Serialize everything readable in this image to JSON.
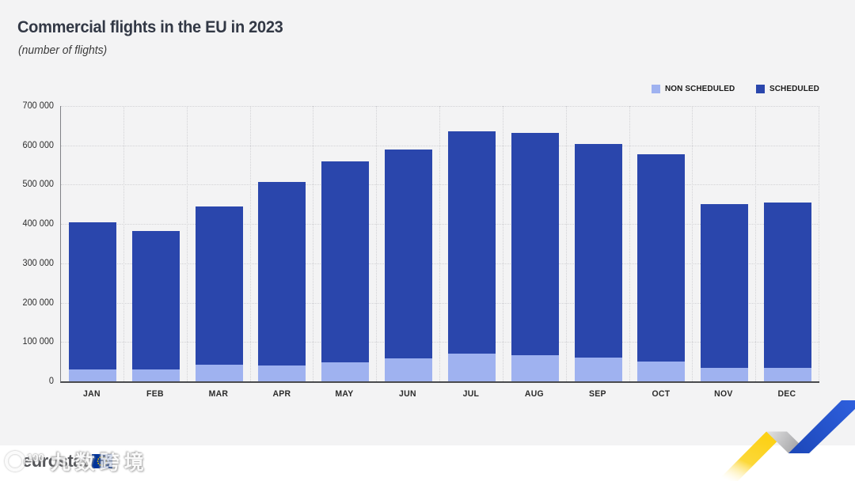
{
  "title": "Commercial flights in the EU in 2023",
  "subtitle": "(number of flights)",
  "legend": [
    {
      "label": "NON SCHEDULED",
      "color": "#9fb2f0"
    },
    {
      "label": "SCHEDULED",
      "color": "#2a46ac"
    }
  ],
  "chart_data": {
    "type": "bar",
    "stacked": true,
    "title": "Commercial flights in the EU in 2023",
    "subtitle": "(number of flights)",
    "categories": [
      "JAN",
      "FEB",
      "MAR",
      "APR",
      "MAY",
      "JUN",
      "JUL",
      "AUG",
      "SEP",
      "OCT",
      "NOV",
      "DEC"
    ],
    "series": [
      {
        "name": "NON SCHEDULED",
        "color": "#9fb2f0",
        "values": [
          31000,
          30000,
          42000,
          41000,
          49000,
          58000,
          71000,
          66000,
          60000,
          50000,
          35000,
          34000
        ]
      },
      {
        "name": "SCHEDULED",
        "color": "#2a46ac",
        "values": [
          373000,
          353000,
          403000,
          465000,
          510000,
          531000,
          564000,
          565000,
          543000,
          527000,
          416000,
          421000
        ]
      }
    ],
    "totals": [
      404000,
      383000,
      445000,
      506000,
      559000,
      589000,
      635000,
      631000,
      603000,
      577000,
      451000,
      455000
    ],
    "ylim": [
      0,
      700000
    ],
    "ytick_step": 100000,
    "ytick_labels": [
      "0",
      "100 000",
      "200 000",
      "300 000",
      "400 000",
      "500 000",
      "600 000",
      "700 000"
    ],
    "grid": "dotted",
    "legend_position": "top-right"
  },
  "footer": {
    "brand": "eurostat",
    "watermark_badge": "100",
    "watermark_text": "九数跨境"
  },
  "colors": {
    "background": "#f3f3f4",
    "footer_background": "#ffffff",
    "non_scheduled": "#9fb2f0",
    "scheduled": "#2a46ac",
    "accent_yellow": "#fcd116",
    "accent_gray": "#b5b5b7",
    "accent_blue": "#2253cc",
    "eu_flag_blue": "#003399",
    "eu_flag_stars": "#ffcc00"
  }
}
